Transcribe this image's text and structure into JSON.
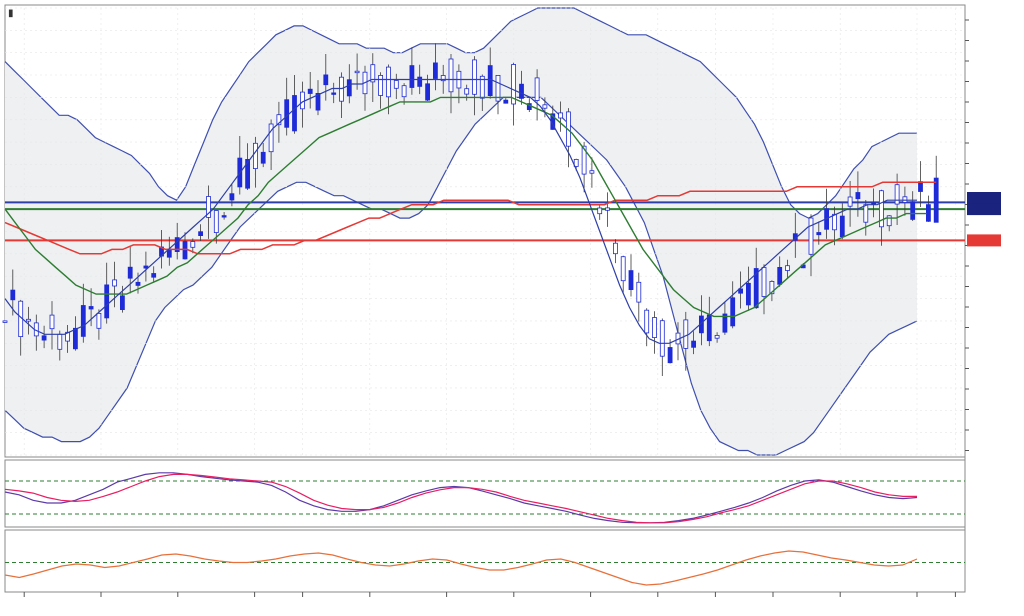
{
  "header": {
    "title": "",
    "mark": "▮"
  },
  "chart_data": [
    {
      "type": "candlestick",
      "panel": "price",
      "title": "",
      "ylim": [
        0,
        100
      ],
      "yticks": [
        "",
        "",
        "",
        "",
        "",
        "",
        "",
        "",
        "",
        "",
        "",
        "",
        "",
        "",
        "",
        "",
        "",
        "",
        "",
        "",
        "",
        ""
      ],
      "price_labels": [
        {
          "text": "",
          "value": 57.5,
          "color": "#1a237e"
        },
        {
          "text": "",
          "value": 55.0,
          "color": "#1a237e"
        },
        {
          "text": "",
          "value": 48.0,
          "color": "#e53935"
        }
      ],
      "hlines": [
        {
          "value": 56.5,
          "color": "#2e3fa8"
        },
        {
          "value": 55.0,
          "color": "#2e7d32"
        },
        {
          "value": 48.0,
          "color": "#e53935"
        }
      ],
      "x_count": 120,
      "bb_upper": [
        88,
        86,
        84,
        82,
        80,
        78,
        76,
        76,
        75,
        73,
        71,
        70,
        69,
        68,
        67,
        65,
        63,
        60,
        58,
        57,
        60,
        65,
        70,
        75,
        79,
        82,
        85,
        88,
        90,
        92,
        94,
        95,
        96,
        96,
        95,
        94,
        93,
        92,
        92,
        92,
        91,
        91,
        91,
        90,
        90,
        91,
        92,
        92,
        92,
        92,
        91,
        90,
        90,
        91,
        93,
        95,
        97,
        98,
        99,
        100,
        100,
        100,
        100,
        100,
        99,
        98,
        97,
        96,
        95,
        94,
        94,
        94,
        93,
        92,
        91,
        90,
        89,
        88,
        86,
        84,
        82,
        80,
        77,
        74,
        70,
        65,
        60,
        56,
        54,
        53,
        54,
        56,
        58,
        61,
        64,
        66,
        69,
        70,
        71,
        72,
        72,
        72
      ],
      "bb_lower": [
        10,
        8,
        6,
        5,
        4,
        4,
        3,
        3,
        3,
        4,
        6,
        9,
        12,
        15,
        20,
        25,
        30,
        33,
        35,
        37,
        38,
        40,
        42,
        45,
        48,
        51,
        53,
        55,
        57,
        59,
        60,
        61,
        61,
        60,
        59,
        58,
        58,
        57,
        56,
        55,
        55,
        54,
        53,
        53,
        54,
        56,
        60,
        64,
        68,
        71,
        74,
        76,
        78,
        80,
        80,
        80,
        80,
        80,
        78,
        76,
        74,
        72,
        70,
        68,
        66,
        63,
        60,
        56,
        52,
        46,
        40,
        32,
        24,
        16,
        10,
        6,
        3,
        2,
        1,
        1,
        0,
        0,
        0,
        1,
        2,
        3,
        5,
        8,
        11,
        14,
        17,
        20,
        23,
        25,
        27,
        28,
        29,
        30
      ],
      "ma_fast": [
        35,
        32,
        30,
        28,
        27,
        27,
        27,
        28,
        29,
        31,
        33,
        35,
        37,
        39,
        41,
        43,
        45,
        47,
        49,
        51,
        53,
        55,
        58,
        61,
        64,
        67,
        70,
        73,
        75,
        77,
        79,
        80,
        81,
        82,
        82,
        83,
        83,
        84,
        84,
        84,
        84,
        84,
        84,
        84,
        84,
        84,
        84,
        84,
        84,
        84,
        83,
        82,
        81,
        80,
        78,
        75,
        71,
        67,
        62,
        56,
        50,
        44,
        38,
        33,
        29,
        26,
        25,
        25,
        26,
        27,
        29,
        31,
        33,
        35,
        37,
        39,
        41,
        43,
        45,
        47,
        49,
        51,
        52,
        53,
        54,
        55,
        55,
        56,
        56,
        57,
        57,
        57,
        57
      ],
      "ma_mid": [
        55,
        52,
        49,
        46,
        44,
        42,
        40,
        38,
        37,
        36,
        36,
        36,
        36,
        37,
        38,
        39,
        40,
        42,
        43,
        45,
        47,
        49,
        51,
        53,
        56,
        58,
        61,
        63,
        65,
        67,
        69,
        71,
        72,
        73,
        74,
        75,
        76,
        77,
        78,
        79,
        79,
        79,
        79,
        80,
        80,
        80,
        80,
        80,
        80,
        80,
        80,
        79,
        78,
        77,
        76,
        74,
        72,
        69,
        66,
        62,
        58,
        54,
        50,
        46,
        43,
        40,
        37,
        35,
        33,
        32,
        31,
        31,
        31,
        32,
        33,
        35,
        37,
        39,
        41,
        43,
        45,
        47,
        48,
        49,
        50,
        51,
        52,
        53,
        53,
        54,
        54,
        54
      ],
      "ma_slow": [
        52,
        51,
        50,
        49,
        48,
        47,
        46,
        45,
        45,
        45,
        46,
        46,
        47,
        47,
        47,
        46,
        46,
        46,
        45,
        45,
        45,
        45,
        46,
        46,
        46,
        47,
        47,
        47,
        48,
        48,
        49,
        50,
        51,
        52,
        53,
        53,
        54,
        55,
        56,
        56,
        56,
        57,
        57,
        57,
        57,
        57,
        57,
        57,
        56,
        56,
        56,
        56,
        56,
        56,
        56,
        56,
        56,
        57,
        57,
        57,
        57,
        58,
        58,
        58,
        59,
        59,
        59,
        59,
        59,
        59,
        59,
        59,
        59,
        59,
        60,
        60,
        60,
        60,
        60,
        60,
        60,
        60,
        61,
        61,
        61,
        61,
        61,
        61
      ]
    },
    {
      "type": "line",
      "panel": "oscillator",
      "title": "",
      "legend": [
        "",
        "",
        ""
      ],
      "ylim": [
        0,
        100
      ],
      "ticks": [
        "",
        "",
        "",
        ""
      ],
      "levels": [
        {
          "value": 80,
          "color": "#2e7d32"
        },
        {
          "value": 20,
          "color": "#2e7d32"
        }
      ],
      "series": [
        {
          "color": "#5c3aa8",
          "values": [
            60,
            55,
            45,
            40,
            40,
            45,
            55,
            65,
            78,
            85,
            92,
            95,
            95,
            92,
            88,
            85,
            82,
            80,
            78,
            72,
            60,
            45,
            35,
            28,
            25,
            25,
            28,
            35,
            45,
            55,
            62,
            68,
            70,
            68,
            62,
            55,
            48,
            40,
            35,
            30,
            25,
            18,
            12,
            8,
            5,
            4,
            4,
            5,
            8,
            12,
            18,
            25,
            32,
            40,
            50,
            62,
            72,
            80,
            82,
            78,
            70,
            62,
            55,
            50,
            48,
            50
          ]
        },
        {
          "color": "#e91e63",
          "values": [
            65,
            62,
            58,
            50,
            45,
            43,
            45,
            52,
            60,
            70,
            80,
            88,
            92,
            92,
            90,
            87,
            84,
            82,
            80,
            78,
            70,
            58,
            45,
            36,
            30,
            28,
            28,
            32,
            40,
            50,
            58,
            64,
            68,
            68,
            65,
            60,
            52,
            45,
            40,
            35,
            30,
            24,
            18,
            12,
            8,
            5,
            4,
            4,
            6,
            10,
            15,
            22,
            28,
            35,
            45,
            55,
            65,
            75,
            80,
            80,
            75,
            68,
            60,
            55,
            52,
            52
          ]
        }
      ]
    },
    {
      "type": "line",
      "panel": "momentum",
      "title": "",
      "ylim": [
        0,
        100
      ],
      "ticks": [
        "",
        ""
      ],
      "levels": [
        {
          "value": 55,
          "color": "#2e7d32"
        }
      ],
      "series": [
        {
          "color": "#e8703a",
          "values": [
            30,
            25,
            32,
            40,
            48,
            52,
            50,
            45,
            48,
            55,
            62,
            70,
            72,
            68,
            62,
            58,
            55,
            55,
            58,
            62,
            68,
            72,
            74,
            70,
            62,
            55,
            50,
            48,
            52,
            58,
            62,
            60,
            52,
            45,
            40,
            40,
            45,
            52,
            60,
            62,
            55,
            45,
            35,
            25,
            15,
            10,
            12,
            18,
            25,
            32,
            40,
            50,
            60,
            68,
            74,
            78,
            76,
            70,
            64,
            60,
            55,
            50,
            48,
            50,
            62
          ]
        }
      ]
    }
  ],
  "xaxis": {
    "ticks": [
      {
        "pos": 0.02,
        "label": ""
      },
      {
        "pos": 0.1,
        "label": ""
      },
      {
        "pos": 0.18,
        "label": ""
      },
      {
        "pos": 0.26,
        "label": ""
      },
      {
        "pos": 0.31,
        "label": ""
      },
      {
        "pos": 0.38,
        "label": ""
      },
      {
        "pos": 0.46,
        "label": ""
      },
      {
        "pos": 0.53,
        "label": ""
      },
      {
        "pos": 0.61,
        "label": ""
      },
      {
        "pos": 0.68,
        "label": ""
      },
      {
        "pos": 0.74,
        "label": ""
      },
      {
        "pos": 0.8,
        "label": ""
      },
      {
        "pos": 0.87,
        "label": ""
      },
      {
        "pos": 0.95,
        "label": ""
      },
      {
        "pos": 0.99,
        "label": ""
      }
    ]
  }
}
